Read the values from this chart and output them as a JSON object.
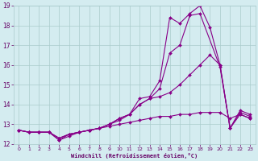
{
  "background_color": "#d4ecf0",
  "line_color": "#880088",
  "grid_color": "#aacccc",
  "xlabel": "Windchill (Refroidissement éolien,°C)",
  "xlabel_color": "#660066",
  "ylabel_color": "#660066",
  "xlim": [
    -0.5,
    23.5
  ],
  "ylim": [
    12,
    19
  ],
  "xticks": [
    0,
    1,
    2,
    3,
    4,
    5,
    6,
    7,
    8,
    9,
    10,
    11,
    12,
    13,
    14,
    15,
    16,
    17,
    18,
    19,
    20,
    21,
    22,
    23
  ],
  "yticks": [
    12,
    13,
    14,
    15,
    16,
    17,
    18,
    19
  ],
  "series": [
    {
      "x": [
        0,
        1,
        2,
        3,
        4,
        5,
        6,
        7,
        8,
        9,
        10,
        11,
        12,
        13,
        14,
        15,
        16,
        17,
        18,
        19,
        20,
        21,
        22,
        23
      ],
      "y": [
        12.7,
        12.6,
        12.6,
        12.6,
        12.2,
        12.5,
        12.6,
        12.7,
        12.8,
        13.0,
        13.3,
        13.5,
        14.3,
        14.4,
        15.2,
        18.4,
        18.1,
        18.6,
        19.0,
        17.9,
        16.0,
        12.8,
        13.7,
        13.5
      ]
    },
    {
      "x": [
        0,
        1,
        2,
        3,
        4,
        5,
        6,
        7,
        8,
        9,
        10,
        11,
        12,
        13,
        14,
        15,
        16,
        17,
        18,
        20,
        21,
        22,
        23
      ],
      "y": [
        12.7,
        12.6,
        12.6,
        12.6,
        12.3,
        12.5,
        12.6,
        12.7,
        12.8,
        13.0,
        13.3,
        13.5,
        14.0,
        14.3,
        14.8,
        16.6,
        17.0,
        18.5,
        18.6,
        15.9,
        12.8,
        13.6,
        13.4
      ]
    },
    {
      "x": [
        0,
        1,
        2,
        3,
        4,
        5,
        6,
        7,
        8,
        9,
        10,
        11,
        12,
        13,
        14,
        15,
        16,
        17,
        18,
        19,
        20,
        21,
        22,
        23
      ],
      "y": [
        12.7,
        12.6,
        12.6,
        12.6,
        12.3,
        12.5,
        12.6,
        12.7,
        12.8,
        13.0,
        13.2,
        13.5,
        14.0,
        14.3,
        14.4,
        14.6,
        15.0,
        15.5,
        16.0,
        16.5,
        16.0,
        12.8,
        13.5,
        13.3
      ]
    },
    {
      "x": [
        0,
        1,
        2,
        3,
        4,
        5,
        6,
        7,
        8,
        9,
        10,
        11,
        12,
        13,
        14,
        15,
        16,
        17,
        18,
        19,
        20,
        21,
        22,
        23
      ],
      "y": [
        12.7,
        12.6,
        12.6,
        12.6,
        12.2,
        12.4,
        12.6,
        12.7,
        12.8,
        12.9,
        13.0,
        13.1,
        13.2,
        13.3,
        13.4,
        13.4,
        13.5,
        13.5,
        13.6,
        13.6,
        13.6,
        13.3,
        13.5,
        13.3
      ]
    }
  ]
}
